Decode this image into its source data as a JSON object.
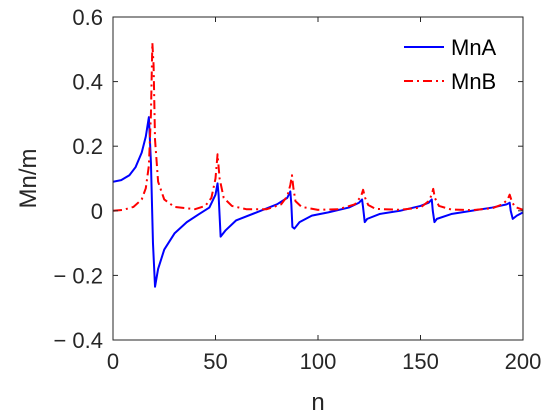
{
  "chart_data": {
    "type": "line",
    "xlabel": "n",
    "ylabel": "Mn/m",
    "xlim": [
      0,
      200
    ],
    "ylim": [
      -0.4,
      0.6
    ],
    "xticks": [
      0,
      50,
      100,
      150,
      200
    ],
    "yticks": [
      -0.4,
      -0.2,
      0,
      0.2,
      0.4,
      0.6
    ],
    "xtick_labels": [
      "0",
      "50",
      "100",
      "150",
      "200"
    ],
    "ytick_labels": [
      "− 0.4",
      "− 0.2",
      "0",
      "0.2",
      "0.4",
      "0.6"
    ],
    "grid": false,
    "legend_position": "top-right",
    "series": [
      {
        "name": "MnA",
        "color": "#0000ff",
        "style": "solid",
        "x": [
          0,
          4,
          8,
          11,
          14,
          16,
          17.5,
          18.5,
          19.5,
          20.5,
          22,
          25,
          30,
          36,
          42,
          47,
          50,
          51,
          51.5,
          52.5,
          55,
          60,
          70,
          80,
          85,
          86.5,
          87,
          87.5,
          88.5,
          91,
          97,
          105,
          115,
          120,
          121.5,
          122,
          122.8,
          124,
          130,
          140,
          150,
          154,
          155.5,
          156,
          156.8,
          158,
          165,
          175,
          185,
          192,
          193.5,
          194,
          195,
          197,
          200
        ],
        "y": [
          0.09,
          0.095,
          0.11,
          0.135,
          0.18,
          0.23,
          0.29,
          0.15,
          -0.1,
          -0.235,
          -0.18,
          -0.12,
          -0.07,
          -0.035,
          -0.01,
          0.01,
          0.05,
          0.085,
          0.05,
          -0.08,
          -0.06,
          -0.03,
          -0.005,
          0.02,
          0.04,
          0.06,
          0.02,
          -0.05,
          -0.055,
          -0.035,
          -0.015,
          -0.005,
          0.01,
          0.025,
          0.035,
          0.01,
          -0.035,
          -0.025,
          -0.01,
          0.0,
          0.015,
          0.025,
          0.035,
          0.0,
          -0.035,
          -0.025,
          -0.01,
          0.0,
          0.01,
          0.02,
          0.025,
          0.0,
          -0.025,
          -0.015,
          -0.005
        ]
      },
      {
        "name": "MnB",
        "color": "#ff0000",
        "style": "dashdot",
        "x": [
          0,
          5,
          10,
          14,
          16,
          17.5,
          18.5,
          19.2,
          19.8,
          20.5,
          22,
          25,
          30,
          40,
          45,
          48,
          50,
          51,
          52,
          54,
          58,
          65,
          75,
          82,
          85,
          86.5,
          87.3,
          88,
          89,
          92,
          100,
          110,
          118,
          121,
          122,
          123,
          124.5,
          128,
          140,
          150,
          154,
          155.5,
          156.2,
          157,
          159,
          165,
          175,
          185,
          190,
          192.5,
          193.5,
          194.5,
          196,
          200
        ],
        "y": [
          0.0,
          0.003,
          0.012,
          0.035,
          0.07,
          0.14,
          0.3,
          0.52,
          0.45,
          0.22,
          0.09,
          0.035,
          0.012,
          0.005,
          0.015,
          0.04,
          0.1,
          0.175,
          0.1,
          0.04,
          0.015,
          0.005,
          0.005,
          0.02,
          0.045,
          0.08,
          0.11,
          0.07,
          0.03,
          0.012,
          0.003,
          0.005,
          0.02,
          0.045,
          0.065,
          0.04,
          0.018,
          0.006,
          0.003,
          0.01,
          0.03,
          0.05,
          0.068,
          0.04,
          0.015,
          0.004,
          0.002,
          0.008,
          0.02,
          0.035,
          0.05,
          0.03,
          0.012,
          0.003
        ]
      }
    ]
  }
}
